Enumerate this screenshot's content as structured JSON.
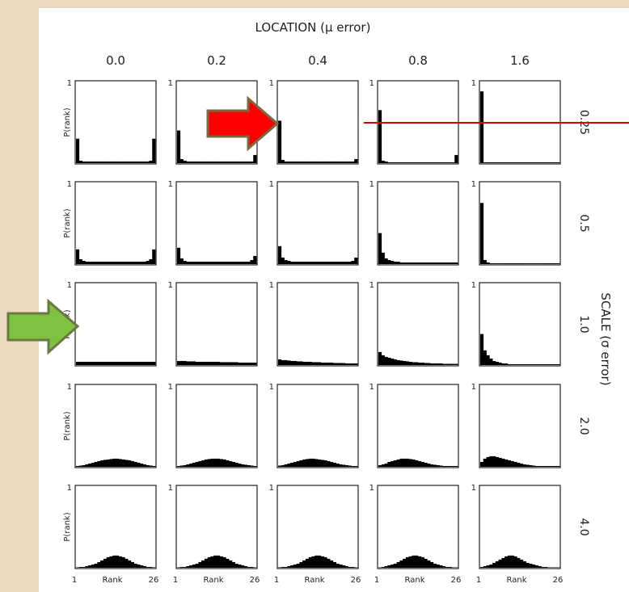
{
  "chart_data": {
    "type": "histogram-grid",
    "title": "LOCATION (μ error)",
    "row_title": "SCALE (σ error)",
    "columns": [
      "0.0",
      "0.2",
      "0.4",
      "0.8",
      "1.6"
    ],
    "rows": [
      "0.25",
      "0.5",
      "1.0",
      "2.0",
      "4.0"
    ],
    "ylabel": "P(rank)",
    "xlabel": "Rank",
    "x_tick_min": "1",
    "x_tick_max": "26",
    "y_tick_top": "1",
    "xlim": [
      1,
      26
    ],
    "ylim": [
      0,
      1
    ],
    "annotations": [
      {
        "type": "arrow",
        "color": "#ff0000",
        "points_to": "row 0.25, column 0.4"
      },
      {
        "type": "arrow",
        "color": "#7fc242",
        "points_to": "row 1.0, column 0.0"
      },
      {
        "type": "line",
        "color": "#dd0000",
        "description": "horizontal line through row 0.25 of columns 0.8 and 1.6"
      }
    ],
    "panels": [
      [
        {
          "row": "0.25",
          "col": "0.0",
          "values": [
            0.3,
            0.03,
            0.02,
            0.02,
            0.02,
            0.02,
            0.02,
            0.02,
            0.02,
            0.02,
            0.02,
            0.02,
            0.02,
            0.02,
            0.02,
            0.02,
            0.02,
            0.02,
            0.02,
            0.02,
            0.02,
            0.02,
            0.02,
            0.02,
            0.03,
            0.3
          ]
        },
        {
          "row": "0.25",
          "col": "0.2",
          "values": [
            0.4,
            0.05,
            0.03,
            0.02,
            0.02,
            0.02,
            0.02,
            0.02,
            0.02,
            0.02,
            0.02,
            0.02,
            0.02,
            0.02,
            0.02,
            0.02,
            0.02,
            0.02,
            0.02,
            0.02,
            0.02,
            0.02,
            0.02,
            0.02,
            0.02,
            0.1
          ]
        },
        {
          "row": "0.25",
          "col": "0.4",
          "values": [
            0.52,
            0.04,
            0.02,
            0.02,
            0.02,
            0.02,
            0.02,
            0.02,
            0.02,
            0.02,
            0.02,
            0.02,
            0.02,
            0.02,
            0.02,
            0.02,
            0.02,
            0.02,
            0.02,
            0.02,
            0.02,
            0.02,
            0.02,
            0.02,
            0.02,
            0.05
          ]
        },
        {
          "row": "0.25",
          "col": "0.8",
          "values": [
            0.65,
            0.03,
            0.02,
            0.01,
            0.01,
            0.01,
            0.01,
            0.01,
            0.01,
            0.01,
            0.01,
            0.01,
            0.01,
            0.01,
            0.01,
            0.01,
            0.01,
            0.01,
            0.01,
            0.01,
            0.01,
            0.01,
            0.01,
            0.01,
            0.01,
            0.1
          ]
        },
        {
          "row": "0.25",
          "col": "1.6",
          "values": [
            0.88,
            0.01,
            0.01,
            0.01,
            0.01,
            0.01,
            0.01,
            0.01,
            0.01,
            0.01,
            0.01,
            0.01,
            0.01,
            0.01,
            0.01,
            0.01,
            0.01,
            0.01,
            0.01,
            0.01,
            0.01,
            0.01,
            0.01,
            0.01,
            0.01,
            0.01
          ]
        }
      ],
      [
        {
          "row": "0.5",
          "col": "0.0",
          "values": [
            0.18,
            0.06,
            0.04,
            0.03,
            0.03,
            0.03,
            0.03,
            0.03,
            0.03,
            0.03,
            0.03,
            0.03,
            0.03,
            0.03,
            0.03,
            0.03,
            0.03,
            0.03,
            0.03,
            0.03,
            0.03,
            0.03,
            0.03,
            0.04,
            0.06,
            0.18
          ]
        },
        {
          "row": "0.5",
          "col": "0.2",
          "values": [
            0.2,
            0.07,
            0.04,
            0.03,
            0.03,
            0.03,
            0.03,
            0.03,
            0.03,
            0.03,
            0.03,
            0.03,
            0.03,
            0.03,
            0.03,
            0.03,
            0.03,
            0.03,
            0.03,
            0.03,
            0.03,
            0.03,
            0.03,
            0.03,
            0.05,
            0.1
          ]
        },
        {
          "row": "0.5",
          "col": "0.4",
          "values": [
            0.22,
            0.08,
            0.05,
            0.04,
            0.03,
            0.03,
            0.03,
            0.03,
            0.03,
            0.03,
            0.03,
            0.03,
            0.03,
            0.03,
            0.03,
            0.03,
            0.03,
            0.03,
            0.03,
            0.03,
            0.03,
            0.03,
            0.03,
            0.03,
            0.04,
            0.08
          ]
        },
        {
          "row": "0.5",
          "col": "0.8",
          "values": [
            0.38,
            0.14,
            0.07,
            0.05,
            0.04,
            0.03,
            0.03,
            0.02,
            0.02,
            0.02,
            0.02,
            0.02,
            0.02,
            0.02,
            0.02,
            0.02,
            0.02,
            0.02,
            0.02,
            0.02,
            0.02,
            0.02,
            0.02,
            0.02,
            0.02,
            0.02
          ]
        },
        {
          "row": "0.5",
          "col": "1.6",
          "values": [
            0.75,
            0.05,
            0.02,
            0.01,
            0.01,
            0.01,
            0.01,
            0.01,
            0.01,
            0.01,
            0.01,
            0.01,
            0.01,
            0.01,
            0.01,
            0.01,
            0.01,
            0.01,
            0.01,
            0.01,
            0.01,
            0.01,
            0.01,
            0.01,
            0.01,
            0.01
          ]
        }
      ],
      [
        {
          "row": "1.0",
          "col": "0.0",
          "values": [
            0.04,
            0.04,
            0.04,
            0.04,
            0.04,
            0.04,
            0.04,
            0.04,
            0.04,
            0.04,
            0.04,
            0.04,
            0.04,
            0.04,
            0.04,
            0.04,
            0.04,
            0.04,
            0.04,
            0.04,
            0.04,
            0.04,
            0.04,
            0.04,
            0.04,
            0.04
          ]
        },
        {
          "row": "1.0",
          "col": "0.2",
          "values": [
            0.05,
            0.05,
            0.05,
            0.045,
            0.045,
            0.045,
            0.04,
            0.04,
            0.04,
            0.04,
            0.04,
            0.04,
            0.04,
            0.04,
            0.035,
            0.035,
            0.035,
            0.035,
            0.035,
            0.035,
            0.03,
            0.03,
            0.03,
            0.03,
            0.03,
            0.03
          ]
        },
        {
          "row": "1.0",
          "col": "0.4",
          "values": [
            0.07,
            0.06,
            0.06,
            0.055,
            0.05,
            0.05,
            0.045,
            0.045,
            0.04,
            0.04,
            0.04,
            0.035,
            0.035,
            0.035,
            0.03,
            0.03,
            0.03,
            0.03,
            0.025,
            0.025,
            0.025,
            0.025,
            0.02,
            0.02,
            0.02,
            0.02
          ]
        },
        {
          "row": "1.0",
          "col": "0.8",
          "values": [
            0.16,
            0.12,
            0.1,
            0.09,
            0.08,
            0.07,
            0.06,
            0.055,
            0.05,
            0.045,
            0.04,
            0.035,
            0.035,
            0.03,
            0.03,
            0.025,
            0.025,
            0.02,
            0.02,
            0.02,
            0.02,
            0.015,
            0.015,
            0.015,
            0.015,
            0.015
          ]
        },
        {
          "row": "1.0",
          "col": "1.6",
          "values": [
            0.38,
            0.18,
            0.12,
            0.08,
            0.05,
            0.04,
            0.03,
            0.02,
            0.02,
            0.01,
            0.01,
            0.01,
            0.01,
            0.01,
            0.01,
            0.01,
            0.01,
            0.01,
            0.01,
            0.01,
            0.01,
            0.01,
            0.01,
            0.01,
            0.01,
            0.01
          ]
        }
      ],
      [
        {
          "row": "2.0",
          "col": "0.0",
          "values": [
            0.01,
            0.015,
            0.02,
            0.03,
            0.04,
            0.05,
            0.06,
            0.07,
            0.08,
            0.085,
            0.09,
            0.095,
            0.1,
            0.1,
            0.095,
            0.09,
            0.085,
            0.08,
            0.07,
            0.06,
            0.05,
            0.04,
            0.03,
            0.02,
            0.015,
            0.01
          ]
        },
        {
          "row": "2.0",
          "col": "0.2",
          "values": [
            0.01,
            0.015,
            0.02,
            0.03,
            0.04,
            0.05,
            0.06,
            0.07,
            0.08,
            0.09,
            0.095,
            0.1,
            0.1,
            0.1,
            0.095,
            0.09,
            0.08,
            0.07,
            0.06,
            0.05,
            0.04,
            0.03,
            0.025,
            0.02,
            0.015,
            0.01
          ]
        },
        {
          "row": "2.0",
          "col": "0.4",
          "values": [
            0.015,
            0.02,
            0.03,
            0.04,
            0.05,
            0.06,
            0.07,
            0.08,
            0.09,
            0.095,
            0.1,
            0.1,
            0.095,
            0.09,
            0.085,
            0.08,
            0.07,
            0.06,
            0.05,
            0.04,
            0.03,
            0.025,
            0.02,
            0.015,
            0.01,
            0.01
          ]
        },
        {
          "row": "2.0",
          "col": "0.8",
          "values": [
            0.02,
            0.03,
            0.04,
            0.06,
            0.07,
            0.08,
            0.09,
            0.1,
            0.1,
            0.1,
            0.095,
            0.09,
            0.08,
            0.07,
            0.06,
            0.05,
            0.04,
            0.03,
            0.025,
            0.02,
            0.015,
            0.01,
            0.01,
            0.01,
            0.01,
            0.01
          ]
        },
        {
          "row": "2.0",
          "col": "1.6",
          "values": [
            0.06,
            0.1,
            0.12,
            0.13,
            0.13,
            0.12,
            0.11,
            0.1,
            0.09,
            0.08,
            0.07,
            0.06,
            0.05,
            0.04,
            0.03,
            0.025,
            0.02,
            0.015,
            0.01,
            0.01,
            0.01,
            0.01,
            0.01,
            0.01,
            0.01,
            0.01
          ]
        }
      ],
      [
        {
          "row": "4.0",
          "col": "0.0",
          "values": [
            0.005,
            0.01,
            0.01,
            0.02,
            0.03,
            0.04,
            0.05,
            0.07,
            0.09,
            0.11,
            0.13,
            0.14,
            0.15,
            0.15,
            0.14,
            0.13,
            0.11,
            0.09,
            0.07,
            0.05,
            0.04,
            0.03,
            0.02,
            0.01,
            0.01,
            0.005
          ]
        },
        {
          "row": "4.0",
          "col": "0.2",
          "values": [
            0.005,
            0.01,
            0.01,
            0.02,
            0.03,
            0.04,
            0.05,
            0.07,
            0.09,
            0.11,
            0.13,
            0.14,
            0.15,
            0.15,
            0.14,
            0.13,
            0.11,
            0.09,
            0.07,
            0.05,
            0.04,
            0.03,
            0.02,
            0.01,
            0.01,
            0.005
          ]
        },
        {
          "row": "4.0",
          "col": "0.4",
          "values": [
            0.005,
            0.01,
            0.01,
            0.02,
            0.03,
            0.04,
            0.05,
            0.07,
            0.09,
            0.11,
            0.13,
            0.14,
            0.15,
            0.15,
            0.14,
            0.13,
            0.11,
            0.09,
            0.07,
            0.05,
            0.04,
            0.03,
            0.02,
            0.01,
            0.01,
            0.005
          ]
        },
        {
          "row": "4.0",
          "col": "0.8",
          "values": [
            0.005,
            0.01,
            0.02,
            0.03,
            0.04,
            0.05,
            0.07,
            0.09,
            0.11,
            0.13,
            0.14,
            0.15,
            0.15,
            0.14,
            0.13,
            0.11,
            0.09,
            0.07,
            0.05,
            0.04,
            0.03,
            0.02,
            0.01,
            0.01,
            0.005,
            0.005
          ]
        },
        {
          "row": "4.0",
          "col": "1.6",
          "values": [
            0.01,
            0.02,
            0.03,
            0.04,
            0.06,
            0.08,
            0.1,
            0.12,
            0.14,
            0.15,
            0.15,
            0.14,
            0.12,
            0.1,
            0.08,
            0.06,
            0.05,
            0.04,
            0.03,
            0.02,
            0.01,
            0.01,
            0.005,
            0.005,
            0.005,
            0.005
          ]
        }
      ]
    ]
  }
}
